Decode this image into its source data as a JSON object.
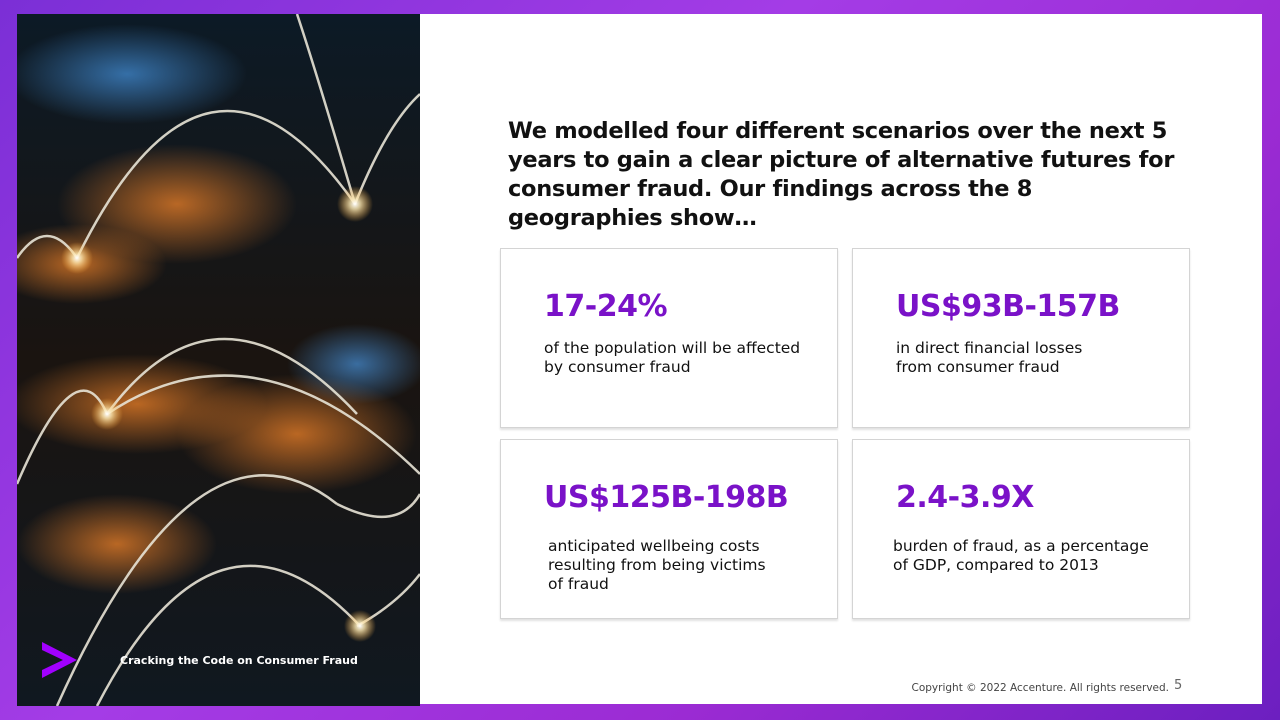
{
  "header": {
    "title": "We modelled four different scenarios over the next 5 years to gain a clear picture of alternative futures for consumer fraud. Our findings across the 8 geographies show…"
  },
  "cards": [
    {
      "stat": "17-24%",
      "text": "of the population will be affected by consumer fraud"
    },
    {
      "stat": "US$93B-157B",
      "text": "in direct financial losses from consumer fraud"
    },
    {
      "stat": "US$125B-198B",
      "text": "anticipated wellbeing costs resulting from being victims of fraud"
    },
    {
      "stat": "2.4-3.9X",
      "text": "burden of fraud, as a percentage of GDP, compared to 2013"
    }
  ],
  "image_caption": "Cracking the Code on Consumer Fraud",
  "footer": {
    "copyright": "Copyright © 2022 Accenture. All rights reserved.",
    "page": 5
  }
}
